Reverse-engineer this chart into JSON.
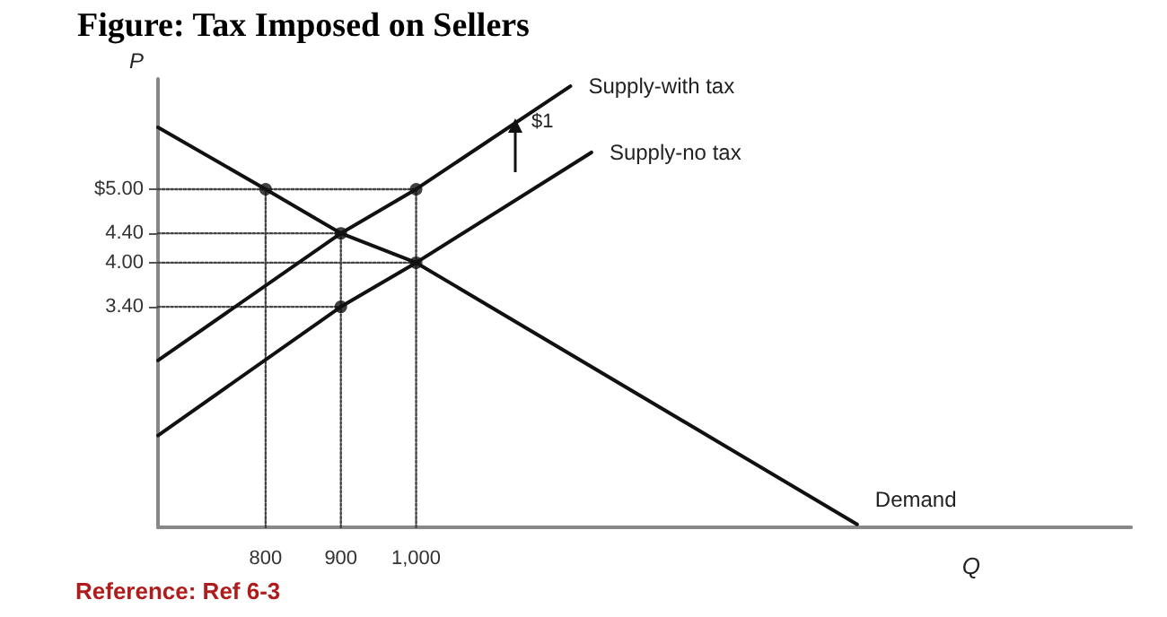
{
  "chart_data": {
    "type": "line",
    "title": "Figure: Tax Imposed on Sellers",
    "xlabel": "Q",
    "ylabel": "P",
    "annotations": [
      "$1",
      "Reference: Ref 6-3"
    ],
    "xlim": [
      657,
      1950
    ],
    "ylim": [
      0.4,
      6.5
    ],
    "xticks": [
      800,
      900,
      {
        "value": 1000,
        "label": "1,000"
      }
    ],
    "yticks": [
      {
        "value": 5,
        "label": "$5.00"
      },
      {
        "value": 4.4,
        "label": "4.40"
      },
      {
        "value": 4,
        "label": "4.00"
      },
      {
        "value": 3.4,
        "label": "3.40"
      }
    ],
    "grid": false,
    "legend": false,
    "marker": "none",
    "line_style": "solid",
    "series": [
      {
        "name": "Supply-with tax",
        "color": "#111111",
        "x": [
          657,
          900,
          1000,
          1205
        ],
        "values": [
          2.67,
          4.4,
          5.0,
          6.4
        ]
      },
      {
        "name": "Supply-no tax",
        "color": "#111111",
        "x": [
          657,
          900,
          1000,
          1233
        ],
        "values": [
          1.65,
          3.4,
          4.0,
          5.5
        ]
      },
      {
        "name": "Demand",
        "color": "#111111",
        "x": [
          657,
          800,
          900,
          1000,
          1586
        ],
        "values": [
          5.84,
          5.0,
          4.4,
          4.0,
          0.44
        ]
      },
      {
        "type": "line",
        "line_style": "dotted",
        "color": "#444444",
        "x": [
          657,
          1000
        ],
        "values": [
          5,
          5
        ]
      },
      {
        "type": "line",
        "line_style": "dotted",
        "color": "#444444",
        "x": [
          657,
          900
        ],
        "values": [
          4.4,
          4.4
        ]
      },
      {
        "type": "line",
        "line_style": "dotted",
        "color": "#444444",
        "x": [
          657,
          1000
        ],
        "values": [
          4,
          4
        ]
      },
      {
        "type": "line",
        "line_style": "dotted",
        "color": "#444444",
        "x": [
          657,
          900
        ],
        "values": [
          3.4,
          3.4
        ]
      },
      {
        "type": "line",
        "line_style": "dotted",
        "color": "#444444",
        "x": [
          800,
          800
        ],
        "values": [
          0.4,
          5
        ]
      },
      {
        "type": "line",
        "line_style": "dotted",
        "color": "#444444",
        "x": [
          900,
          900
        ],
        "values": [
          0.4,
          4.4
        ]
      },
      {
        "type": "line",
        "line_style": "dotted",
        "color": "#444444",
        "x": [
          1000,
          1000
        ],
        "values": [
          0.4,
          5
        ]
      },
      {
        "type": "scatter",
        "marker": "circle",
        "color": "#111111",
        "x": [
          800,
          900,
          1000,
          900,
          1000
        ],
        "values": [
          5,
          4.4,
          4,
          3.4,
          5
        ]
      }
    ]
  }
}
